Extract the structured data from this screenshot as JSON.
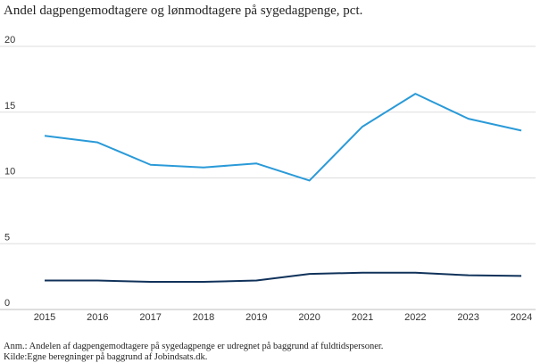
{
  "chart_data": {
    "type": "line",
    "title": "Andel dagpengemodtagere og lønmodtagere på sygedagpenge, pct.",
    "x": [
      "2015",
      "2016",
      "2017",
      "2018",
      "2019",
      "2020",
      "2021",
      "2022",
      "2023",
      "2024"
    ],
    "series": [
      {
        "color": "#2a9ad8",
        "values": [
          13.2,
          12.7,
          11.0,
          10.8,
          11.1,
          9.8,
          13.9,
          16.4,
          14.5,
          13.6
        ]
      },
      {
        "color": "#10325a",
        "values": [
          2.2,
          2.2,
          2.1,
          2.1,
          2.2,
          2.7,
          2.8,
          2.8,
          2.6,
          2.55
        ]
      }
    ],
    "ylim": [
      0,
      20
    ],
    "y_ticks": [
      "0",
      "5",
      "10",
      "15",
      "20"
    ],
    "grid": true,
    "notes": [
      "Anm.: Andelen af dagpengemodtagere på sygedagpenge er udregnet på baggrund af fuldtidspersoner.",
      "Kilde:Egne beregninger på baggrund af Jobindsats.dk."
    ]
  }
}
